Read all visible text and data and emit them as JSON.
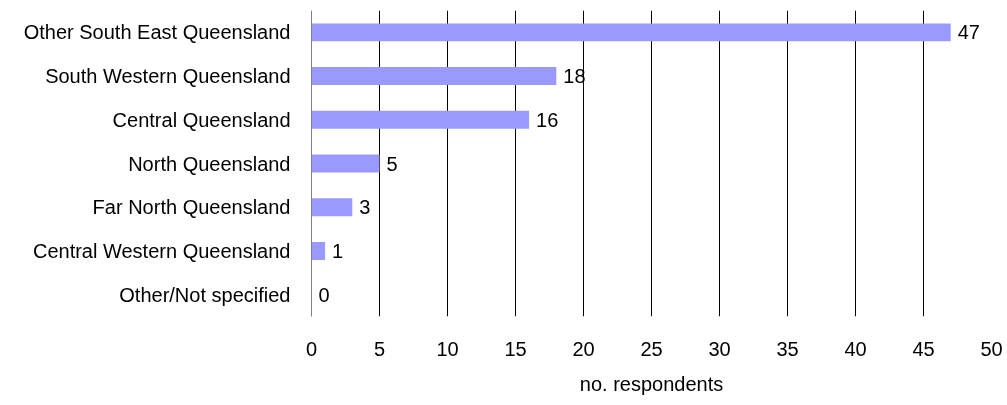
{
  "chart_data": {
    "type": "bar",
    "orientation": "horizontal",
    "xlabel": "no. respondents",
    "categories": [
      "Other South East Queensland",
      "South Western Queensland",
      "Central Queensland",
      "North Queensland",
      "Far North Queensland",
      "Central Western Queensland",
      "Other/Not specified"
    ],
    "values": [
      47,
      18,
      16,
      5,
      3,
      1,
      0
    ],
    "color": "#9999ff",
    "xlim": [
      0,
      50
    ],
    "xticks": [
      0,
      5,
      10,
      15,
      20,
      25,
      30,
      35,
      40,
      45,
      50
    ],
    "grid": "x",
    "data_labels": true
  }
}
